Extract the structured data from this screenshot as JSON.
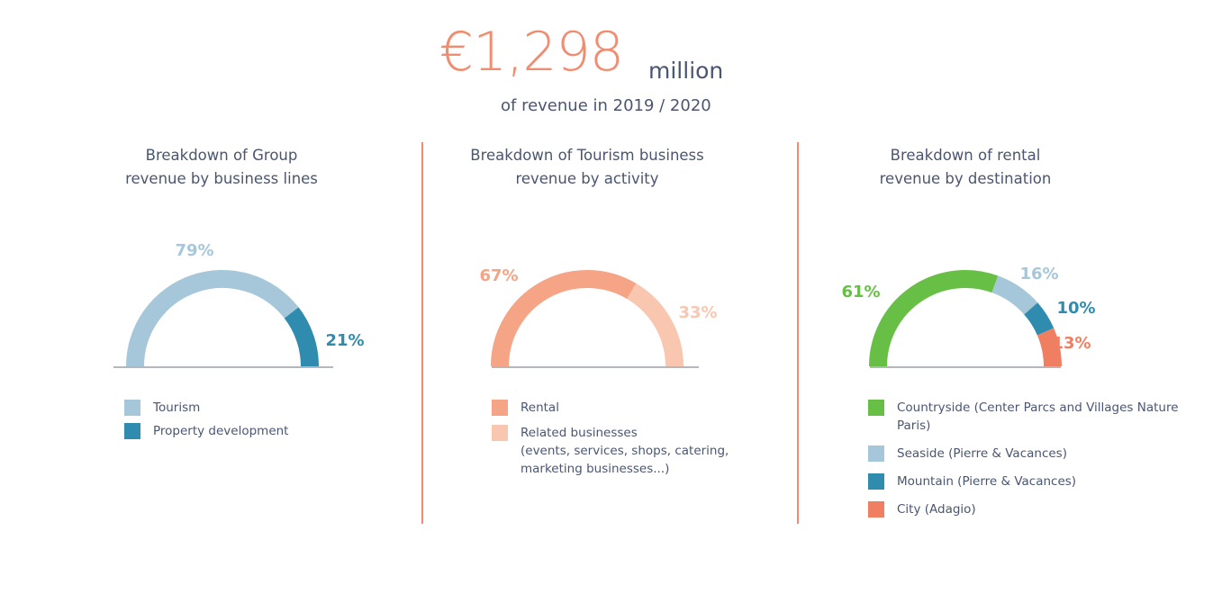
{
  "header": {
    "amount": "€1,298",
    "unit": "million",
    "subtitle": "of revenue in 2019 / 2020"
  },
  "chart_data": [
    {
      "type": "pie",
      "title": [
        "Breakdown of Group",
        "revenue by business lines"
      ],
      "series": [
        {
          "name": "Tourism",
          "value": 79,
          "label": "79%",
          "color": "#a6c7d9"
        },
        {
          "name": "Property development",
          "value": 21,
          "label": "21%",
          "color": "#2f8cae"
        }
      ]
    },
    {
      "type": "pie",
      "title": [
        "Breakdown of Tourism business",
        "revenue by activity"
      ],
      "series": [
        {
          "name": "Rental",
          "value": 67,
          "label": "67%",
          "color": "#f6a486"
        },
        {
          "name": "Related businesses",
          "legend_lines": [
            "Related businesses",
            "(events, services, shops, catering,",
            "marketing businesses...)"
          ],
          "value": 33,
          "label": "33%",
          "color": "#f9c6b0"
        }
      ]
    },
    {
      "type": "pie",
      "title": [
        "Breakdown of rental",
        "revenue by destination"
      ],
      "series": [
        {
          "name": "Countryside (Center Parcs and Villages Nature Paris)",
          "value": 61,
          "label": "61%",
          "color": "#67bf45"
        },
        {
          "name": "Seaside (Pierre & Vacances)",
          "value": 16,
          "label": "16%",
          "color": "#a6c7d9"
        },
        {
          "name": "Mountain (Pierre & Vacances)",
          "value": 10,
          "label": "10%",
          "color": "#2f8cae"
        },
        {
          "name": "City (Adagio)",
          "value": 13,
          "label": "13%",
          "color": "#f07f62"
        }
      ]
    }
  ]
}
